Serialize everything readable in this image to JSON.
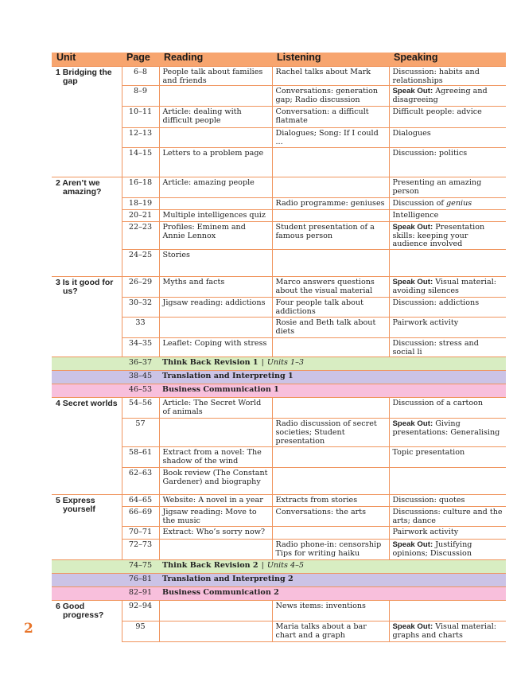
{
  "colors": {
    "header": "#f7a56f",
    "rule": "#f0955e",
    "think_back": "#d8edc2",
    "translation": "#cbc3e6",
    "business": "#f8bfdc",
    "page_number": "#e8752a"
  },
  "headers": [
    "Unit",
    "Page",
    "Reading",
    "Listening",
    "Speaking"
  ],
  "page_number": "2",
  "sections": [
    {
      "type": "unit",
      "unit": "1 Bridging the gap",
      "rows": [
        {
          "page": "6–8",
          "reading": "People talk about families and friends",
          "listening": "Rachel talks about Mark",
          "speaking": {
            "text": "Discussion: habits and relationships"
          }
        },
        {
          "page": "8–9",
          "reading": "",
          "listening": "Conversations: generation gap; Radio discussion",
          "speaking": {
            "bold": "Speak Out:",
            "text": " Agreeing and disagreeing"
          }
        },
        {
          "page": "10–11",
          "reading": "Article: dealing with difficult people",
          "listening": "Conversation: a difficult flatmate",
          "speaking": {
            "text": "Difficult people: advice"
          }
        },
        {
          "page": "12–13",
          "reading": "",
          "listening": "Dialogues; Song: If I could ...",
          "speaking": {
            "text": "Dialogues"
          }
        },
        {
          "page": "14–15",
          "reading": "Letters to a problem page",
          "listening": "",
          "speaking": {
            "text": "Discussion: politics"
          }
        }
      ]
    },
    {
      "type": "unit",
      "unit": "2 Aren’t we amazing?",
      "rows": [
        {
          "page": "16–18",
          "reading": "Article: amazing people",
          "listening": "",
          "speaking": {
            "text": "Presenting an amazing person"
          }
        },
        {
          "page": "18–19",
          "reading": "",
          "listening": "Radio programme: geniuses",
          "speaking": {
            "text": "Discussion of ",
            "italic": "genius"
          }
        },
        {
          "page": "20–21",
          "reading": "Multiple intelligences quiz",
          "listening": "",
          "speaking": {
            "text": "Intelligence"
          }
        },
        {
          "page": "22–23",
          "reading": "Profiles: Eminem and Annie Lennox",
          "listening": "Student presentation of a famous person",
          "speaking": {
            "bold": "Speak Out:",
            "text": " Presentation skills: keeping your audience involved"
          }
        },
        {
          "page": "24–25",
          "reading": "Stories",
          "listening": "",
          "speaking": {
            "text": ""
          }
        }
      ]
    },
    {
      "type": "unit",
      "unit": "3 Is it good for us?",
      "rows": [
        {
          "page": "26–29",
          "reading": "Myths and facts",
          "listening": "Marco answers questions about the visual material",
          "speaking": {
            "bold": "Speak Out:",
            "text": " Visual material: avoiding silences"
          }
        },
        {
          "page": "30–32",
          "reading": "Jigsaw reading: addictions",
          "listening": "Four people talk about addictions",
          "speaking": {
            "text": "Discussion: addictions"
          }
        },
        {
          "page": "33",
          "reading": "",
          "listening": "Rosie and Beth talk about diets",
          "speaking": {
            "text": "Pairwork activity"
          }
        },
        {
          "page": "34–35",
          "reading": "Leaflet: Coping with stress",
          "listening": "",
          "speaking": {
            "text": "Discussion: stress and social li"
          }
        }
      ]
    },
    {
      "type": "band",
      "kind": "think_back",
      "page": "36–37",
      "label": "Think Back Revision 1",
      "sub": "Units 1–3"
    },
    {
      "type": "band",
      "kind": "translation",
      "page": "38–45",
      "label": "Translation and Interpreting 1"
    },
    {
      "type": "band",
      "kind": "business",
      "page": "46–53",
      "label": "Business Communication 1"
    },
    {
      "type": "unit",
      "unit": "4 Secret worlds",
      "rows": [
        {
          "page": "54–56",
          "reading": "Article: The Secret World of animals",
          "listening": "",
          "speaking": {
            "text": "Discussion of a cartoon"
          }
        },
        {
          "page": "57",
          "reading": "",
          "listening": "Radio discussion of secret societies; Student presentation",
          "speaking": {
            "bold": "Speak Out:",
            "text": " Giving presentations: Generalising"
          }
        },
        {
          "page": "58–61",
          "reading": "Extract from a novel: The shadow of the wind",
          "listening": "",
          "speaking": {
            "text": "Topic presentation"
          }
        },
        {
          "page": "62–63",
          "reading": "Book review (The Constant Gardener) and biography",
          "listening": "",
          "speaking": {
            "text": ""
          }
        }
      ]
    },
    {
      "type": "unit",
      "unit": "5 Express yourself",
      "rows": [
        {
          "page": "64–65",
          "reading": "Website: A novel in a year",
          "listening": "Extracts from stories",
          "speaking": {
            "text": "Discussion: quotes"
          }
        },
        {
          "page": "66–69",
          "reading": "Jigsaw reading: Move to the music",
          "listening": "Conversations: the arts",
          "speaking": {
            "text": "Discussions: culture and the arts; dance"
          }
        },
        {
          "page": "70–71",
          "reading": "Extract: Who’s sorry now?",
          "listening": "",
          "speaking": {
            "text": "Pairwork activity"
          }
        },
        {
          "page": "72–73",
          "reading": "",
          "listening": "Radio phone-in: censorship Tips for writing haiku",
          "speaking": {
            "bold": "Speak Out:",
            "text": " Justifying opinions; Discussion"
          }
        }
      ]
    },
    {
      "type": "band",
      "kind": "think_back",
      "page": "74–75",
      "label": "Think Back Revision 2",
      "sub": "Units 4–5"
    },
    {
      "type": "band",
      "kind": "translation",
      "page": "76–81",
      "label": "Translation and Interpreting 2"
    },
    {
      "type": "band",
      "kind": "business",
      "page": "82–91",
      "label": "Business Communication 2"
    },
    {
      "type": "unit",
      "unit": "6 Good progress?",
      "rows": [
        {
          "page": "92–94",
          "reading": "",
          "listening": "News items: inventions",
          "speaking": {
            "text": ""
          }
        },
        {
          "page": "95",
          "reading": "",
          "listening": "Maria talks about a bar chart and a graph",
          "speaking": {
            "bold": "Speak Out:",
            "text": " Visual material: graphs and charts"
          }
        }
      ]
    }
  ]
}
